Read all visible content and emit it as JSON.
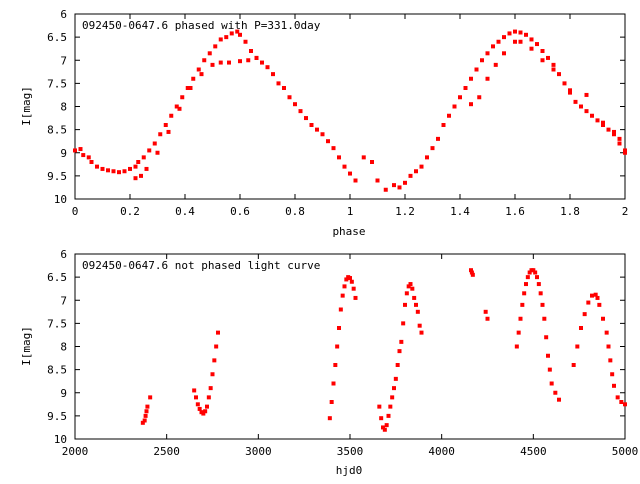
{
  "chart_data": [
    {
      "type": "scatter",
      "title": "092450-0647.6 phased with P=331.0day",
      "xlabel": "phase",
      "ylabel": "I[mag]",
      "xlim": [
        0,
        2
      ],
      "ylim": [
        10,
        6
      ],
      "y_inverted": true,
      "grid": false,
      "x_ticks": [
        "0",
        "0.2",
        "0.4",
        "0.6",
        "0.8",
        "1",
        "1.2",
        "1.4",
        "1.6",
        "1.8",
        "2"
      ],
      "y_ticks": [
        "6",
        "6.5",
        "7",
        "7.5",
        "8",
        "8.5",
        "9",
        "9.5",
        "10"
      ],
      "color": "#ff0000",
      "series": [
        {
          "points": [
            [
              0.0,
              8.95
            ],
            [
              0.02,
              8.92
            ],
            [
              0.03,
              9.05
            ],
            [
              0.05,
              9.1
            ],
            [
              0.06,
              9.2
            ],
            [
              0.08,
              9.3
            ],
            [
              0.1,
              9.35
            ],
            [
              0.12,
              9.38
            ],
            [
              0.14,
              9.4
            ],
            [
              0.16,
              9.42
            ],
            [
              0.18,
              9.4
            ],
            [
              0.2,
              9.35
            ],
            [
              0.22,
              9.3
            ],
            [
              0.23,
              9.2
            ],
            [
              0.25,
              9.1
            ],
            [
              0.27,
              8.95
            ],
            [
              0.29,
              8.8
            ],
            [
              0.31,
              8.6
            ],
            [
              0.33,
              8.4
            ],
            [
              0.35,
              8.2
            ],
            [
              0.37,
              8.0
            ],
            [
              0.39,
              7.8
            ],
            [
              0.41,
              7.6
            ],
            [
              0.43,
              7.4
            ],
            [
              0.45,
              7.2
            ],
            [
              0.47,
              7.0
            ],
            [
              0.49,
              6.85
            ],
            [
              0.51,
              6.7
            ],
            [
              0.53,
              6.55
            ],
            [
              0.55,
              6.5
            ],
            [
              0.57,
              6.42
            ],
            [
              0.59,
              6.38
            ],
            [
              0.6,
              6.45
            ],
            [
              0.62,
              6.6
            ],
            [
              0.64,
              6.8
            ],
            [
              0.66,
              6.95
            ],
            [
              0.68,
              7.05
            ],
            [
              0.7,
              7.15
            ],
            [
              0.72,
              7.3
            ],
            [
              0.74,
              7.5
            ],
            [
              0.76,
              7.6
            ],
            [
              0.78,
              7.8
            ],
            [
              0.8,
              7.95
            ],
            [
              0.82,
              8.1
            ],
            [
              0.84,
              8.25
            ],
            [
              0.86,
              8.4
            ],
            [
              0.88,
              8.5
            ],
            [
              0.9,
              8.6
            ],
            [
              0.92,
              8.75
            ],
            [
              0.94,
              8.9
            ],
            [
              0.96,
              9.1
            ],
            [
              0.98,
              9.3
            ],
            [
              1.0,
              9.45
            ],
            [
              1.02,
              9.6
            ],
            [
              1.05,
              9.1
            ],
            [
              1.08,
              9.2
            ],
            [
              1.1,
              9.6
            ],
            [
              1.13,
              9.8
            ],
            [
              0.5,
              7.1
            ],
            [
              0.53,
              7.05
            ],
            [
              0.56,
              7.05
            ],
            [
              0.6,
              7.02
            ],
            [
              0.63,
              7.0
            ],
            [
              0.66,
              6.95
            ],
            [
              0.22,
              9.55
            ],
            [
              0.24,
              9.5
            ],
            [
              0.26,
              9.35
            ],
            [
              0.3,
              9.0
            ],
            [
              0.34,
              8.55
            ],
            [
              0.38,
              8.05
            ],
            [
              0.42,
              7.6
            ],
            [
              0.46,
              7.3
            ],
            [
              1.16,
              9.7
            ],
            [
              1.18,
              9.75
            ],
            [
              1.2,
              9.65
            ],
            [
              1.22,
              9.5
            ],
            [
              1.24,
              9.4
            ],
            [
              1.26,
              9.3
            ],
            [
              1.28,
              9.1
            ],
            [
              1.3,
              8.9
            ],
            [
              1.32,
              8.7
            ],
            [
              1.34,
              8.4
            ],
            [
              1.36,
              8.2
            ],
            [
              1.38,
              8.0
            ],
            [
              1.4,
              7.8
            ],
            [
              1.42,
              7.6
            ],
            [
              1.44,
              7.4
            ],
            [
              1.46,
              7.2
            ],
            [
              1.48,
              7.0
            ],
            [
              1.5,
              6.85
            ],
            [
              1.52,
              6.7
            ],
            [
              1.54,
              6.6
            ],
            [
              1.56,
              6.5
            ],
            [
              1.58,
              6.42
            ],
            [
              1.6,
              6.38
            ],
            [
              1.62,
              6.4
            ],
            [
              1.64,
              6.45
            ],
            [
              1.66,
              6.55
            ],
            [
              1.68,
              6.65
            ],
            [
              1.7,
              6.8
            ],
            [
              1.72,
              6.95
            ],
            [
              1.74,
              7.1
            ],
            [
              1.76,
              7.3
            ],
            [
              1.78,
              7.5
            ],
            [
              1.8,
              7.7
            ],
            [
              1.82,
              7.9
            ],
            [
              1.84,
              8.0
            ],
            [
              1.86,
              8.1
            ],
            [
              1.88,
              8.2
            ],
            [
              1.9,
              8.3
            ],
            [
              1.92,
              8.4
            ],
            [
              1.94,
              8.5
            ],
            [
              1.96,
              8.6
            ],
            [
              1.98,
              8.8
            ],
            [
              2.0,
              8.95
            ],
            [
              1.44,
              7.95
            ],
            [
              1.47,
              7.8
            ],
            [
              1.5,
              7.4
            ],
            [
              1.53,
              7.1
            ],
            [
              1.56,
              6.85
            ],
            [
              1.6,
              6.6
            ],
            [
              1.62,
              6.6
            ],
            [
              1.66,
              6.75
            ],
            [
              1.7,
              7.0
            ],
            [
              1.74,
              7.2
            ],
            [
              1.8,
              7.65
            ],
            [
              1.86,
              7.75
            ],
            [
              1.92,
              8.35
            ],
            [
              1.96,
              8.55
            ],
            [
              1.98,
              8.7
            ],
            [
              2.0,
              9.0
            ]
          ]
        }
      ]
    },
    {
      "type": "scatter",
      "title": "092450-0647.6 not phased light curve",
      "xlabel": "hjd0",
      "ylabel": "I[mag]",
      "xlim": [
        2000,
        5000
      ],
      "ylim": [
        10,
        6
      ],
      "y_inverted": true,
      "grid": false,
      "x_ticks": [
        "2000",
        "2500",
        "3000",
        "3500",
        "4000",
        "4500",
        "5000"
      ],
      "y_ticks": [
        "6",
        "6.5",
        "7",
        "7.5",
        "8",
        "8.5",
        "9",
        "9.5",
        "10"
      ],
      "color": "#ff0000",
      "series": [
        {
          "points": [
            [
              2370,
              9.65
            ],
            [
              2380,
              9.6
            ],
            [
              2385,
              9.5
            ],
            [
              2390,
              9.4
            ],
            [
              2395,
              9.3
            ],
            [
              2410,
              9.1
            ],
            [
              2650,
              8.95
            ],
            [
              2660,
              9.1
            ],
            [
              2670,
              9.25
            ],
            [
              2680,
              9.35
            ],
            [
              2690,
              9.42
            ],
            [
              2700,
              9.45
            ],
            [
              2710,
              9.4
            ],
            [
              2720,
              9.3
            ],
            [
              2730,
              9.1
            ],
            [
              2740,
              8.9
            ],
            [
              2750,
              8.6
            ],
            [
              2760,
              8.3
            ],
            [
              2770,
              8.0
            ],
            [
              2780,
              7.7
            ],
            [
              3390,
              9.55
            ],
            [
              3400,
              9.2
            ],
            [
              3410,
              8.8
            ],
            [
              3420,
              8.4
            ],
            [
              3430,
              8.0
            ],
            [
              3440,
              7.6
            ],
            [
              3450,
              7.2
            ],
            [
              3460,
              6.9
            ],
            [
              3470,
              6.7
            ],
            [
              3480,
              6.55
            ],
            [
              3490,
              6.5
            ],
            [
              3500,
              6.52
            ],
            [
              3510,
              6.6
            ],
            [
              3520,
              6.75
            ],
            [
              3530,
              6.95
            ],
            [
              3660,
              9.3
            ],
            [
              3670,
              9.55
            ],
            [
              3680,
              9.75
            ],
            [
              3690,
              9.8
            ],
            [
              3700,
              9.7
            ],
            [
              3710,
              9.5
            ],
            [
              3720,
              9.3
            ],
            [
              3730,
              9.1
            ],
            [
              3740,
              8.9
            ],
            [
              3750,
              8.7
            ],
            [
              3760,
              8.4
            ],
            [
              3770,
              8.1
            ],
            [
              3780,
              7.9
            ],
            [
              3790,
              7.5
            ],
            [
              3800,
              7.1
            ],
            [
              3810,
              6.85
            ],
            [
              3820,
              6.7
            ],
            [
              3830,
              6.65
            ],
            [
              3840,
              6.75
            ],
            [
              3850,
              6.95
            ],
            [
              3860,
              7.1
            ],
            [
              3870,
              7.25
            ],
            [
              3880,
              7.55
            ],
            [
              3890,
              7.7
            ],
            [
              4160,
              6.35
            ],
            [
              4165,
              6.4
            ],
            [
              4170,
              6.45
            ],
            [
              4240,
              7.25
            ],
            [
              4250,
              7.4
            ],
            [
              4410,
              8.0
            ],
            [
              4420,
              7.7
            ],
            [
              4430,
              7.4
            ],
            [
              4440,
              7.1
            ],
            [
              4450,
              6.85
            ],
            [
              4460,
              6.65
            ],
            [
              4470,
              6.5
            ],
            [
              4480,
              6.4
            ],
            [
              4490,
              6.35
            ],
            [
              4500,
              6.35
            ],
            [
              4510,
              6.4
            ],
            [
              4520,
              6.5
            ],
            [
              4530,
              6.65
            ],
            [
              4540,
              6.85
            ],
            [
              4550,
              7.1
            ],
            [
              4560,
              7.4
            ],
            [
              4570,
              7.8
            ],
            [
              4580,
              8.2
            ],
            [
              4590,
              8.5
            ],
            [
              4600,
              8.8
            ],
            [
              4620,
              9.0
            ],
            [
              4640,
              9.15
            ],
            [
              4720,
              8.4
            ],
            [
              4740,
              8.0
            ],
            [
              4760,
              7.6
            ],
            [
              4780,
              7.3
            ],
            [
              4800,
              7.05
            ],
            [
              4820,
              6.9
            ],
            [
              4840,
              6.88
            ],
            [
              4850,
              6.95
            ],
            [
              4860,
              7.1
            ],
            [
              4880,
              7.4
            ],
            [
              4900,
              7.7
            ],
            [
              4910,
              8.0
            ],
            [
              4920,
              8.3
            ],
            [
              4930,
              8.6
            ],
            [
              4940,
              8.85
            ],
            [
              4960,
              9.1
            ],
            [
              4980,
              9.2
            ],
            [
              5000,
              9.25
            ]
          ]
        }
      ]
    }
  ]
}
